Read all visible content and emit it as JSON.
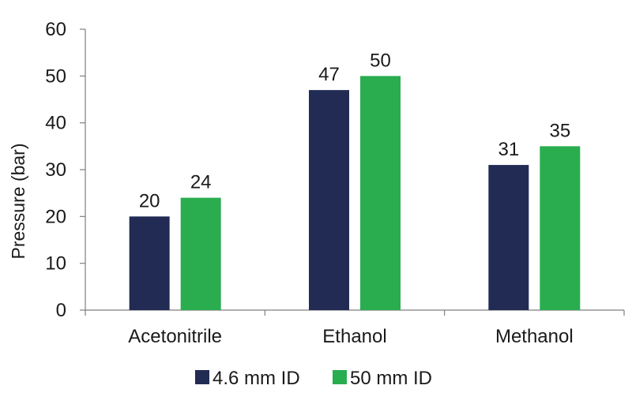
{
  "chart_data": {
    "type": "bar",
    "title": "",
    "xlabel": "",
    "ylabel": "Pressure (bar)",
    "ylim": [
      0,
      60
    ],
    "yticks": [
      0,
      10,
      20,
      30,
      40,
      50,
      60
    ],
    "grid": false,
    "legend_position": "bottom",
    "categories": [
      "Acetonitrile",
      "Ethanol",
      "Methanol"
    ],
    "series": [
      {
        "name": "4.6 mm ID",
        "color": "#212b54",
        "values": [
          20,
          47,
          31
        ]
      },
      {
        "name": "50 mm ID",
        "color": "#2aad4f",
        "values": [
          24,
          50,
          35
        ]
      }
    ]
  }
}
